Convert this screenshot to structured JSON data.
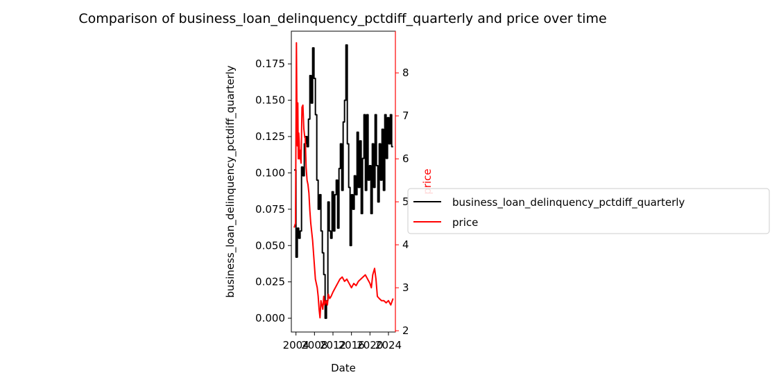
{
  "chart_data": {
    "type": "line",
    "title": "Comparison of business_loan_delinquency_pctdiff_quarterly and price over time",
    "xlabel": "Date",
    "ylabel_left": "business_loan_delinquency_pctdiff_quarterly",
    "ylabel_right": "price",
    "x_ticks": [
      "2004",
      "2008",
      "2012",
      "2016",
      "2020",
      "2024"
    ],
    "y_left_ticks": [
      "0.000",
      "0.025",
      "0.050",
      "0.075",
      "0.100",
      "0.125",
      "0.150",
      "0.175"
    ],
    "y_right_ticks": [
      "2",
      "3",
      "4",
      "5",
      "6",
      "7",
      "8"
    ],
    "xlim": [
      2003.0,
      2025.5
    ],
    "ylim_left": [
      -0.0095,
      0.1975
    ],
    "ylim_right": [
      1.97,
      8.97
    ],
    "grid": false,
    "legend_position": "outside-right",
    "colors": {
      "business_loan_delinquency_pctdiff_quarterly": "#000000",
      "price": "#ff0000"
    },
    "series": [
      {
        "name": "business_loan_delinquency_pctdiff_quarterly",
        "axis": "left",
        "x": [
          2003.6,
          2004.0,
          2004.0,
          2004.3,
          2004.3,
          2004.6,
          2004.6,
          2004.9,
          2004.9,
          2005.2,
          2005.2,
          2005.5,
          2005.5,
          2005.8,
          2005.8,
          2006.1,
          2006.1,
          2006.4,
          2006.4,
          2006.7,
          2006.7,
          2007.0,
          2007.0,
          2007.3,
          2007.3,
          2007.6,
          2007.6,
          2007.9,
          2007.9,
          2008.2,
          2008.2,
          2008.5,
          2008.5,
          2008.8,
          2008.8,
          2009.1,
          2009.1,
          2009.4,
          2009.4,
          2009.7,
          2009.7,
          2010.0,
          2010.0,
          2010.3,
          2010.3,
          2010.6,
          2010.6,
          2010.9,
          2010.9,
          2011.2,
          2011.2,
          2011.5,
          2011.5,
          2011.8,
          2011.8,
          2012.1,
          2012.1,
          2012.4,
          2012.4,
          2012.7,
          2012.7,
          2013.0,
          2013.0,
          2013.3,
          2013.3,
          2013.6,
          2013.6,
          2013.9,
          2013.9,
          2014.2,
          2014.2,
          2014.5,
          2014.5,
          2014.8,
          2014.8,
          2015.1,
          2015.1,
          2015.4,
          2015.4,
          2015.7,
          2015.7,
          2016.0,
          2016.0,
          2016.3,
          2016.3,
          2016.6,
          2016.6,
          2016.9,
          2016.9,
          2017.2,
          2017.2,
          2017.5,
          2017.5,
          2017.8,
          2017.8,
          2018.1,
          2018.1,
          2018.4,
          2018.4,
          2018.7,
          2018.7,
          2019.0,
          2019.0,
          2019.3,
          2019.3,
          2019.6,
          2019.6,
          2019.9,
          2019.9,
          2020.2,
          2020.2,
          2020.5,
          2020.5,
          2020.8,
          2020.8,
          2021.1,
          2021.1,
          2021.4,
          2021.4,
          2021.7,
          2021.7,
          2022.0,
          2022.0,
          2022.3,
          2022.3,
          2022.6,
          2022.6,
          2022.9,
          2022.9,
          2023.2,
          2023.2,
          2023.5,
          2023.5,
          2023.8,
          2023.8,
          2024.1,
          2024.1,
          2024.4,
          2024.4,
          2024.7,
          2024.7,
          2025.0
        ],
        "values": [
          0.102,
          0.102,
          0.042,
          0.042,
          0.062,
          0.062,
          0.055,
          0.055,
          0.06,
          0.06,
          0.104,
          0.104,
          0.098,
          0.098,
          0.12,
          0.12,
          0.125,
          0.125,
          0.118,
          0.118,
          0.137,
          0.137,
          0.167,
          0.167,
          0.148,
          0.148,
          0.186,
          0.186,
          0.165,
          0.165,
          0.14,
          0.14,
          0.095,
          0.095,
          0.075,
          0.075,
          0.085,
          0.085,
          0.06,
          0.06,
          0.045,
          0.045,
          0.03,
          0.03,
          0.0,
          0.0,
          0.012,
          0.012,
          0.08,
          0.08,
          0.06,
          0.06,
          0.055,
          0.055,
          0.087,
          0.087,
          0.06,
          0.06,
          0.085,
          0.085,
          0.095,
          0.095,
          0.062,
          0.062,
          0.103,
          0.103,
          0.12,
          0.12,
          0.088,
          0.088,
          0.135,
          0.135,
          0.15,
          0.15,
          0.188,
          0.188,
          0.12,
          0.12,
          0.09,
          0.09,
          0.05,
          0.05,
          0.085,
          0.085,
          0.075,
          0.075,
          0.098,
          0.098,
          0.085,
          0.085,
          0.128,
          0.128,
          0.09,
          0.09,
          0.122,
          0.122,
          0.072,
          0.072,
          0.11,
          0.11,
          0.14,
          0.14,
          0.088,
          0.088,
          0.14,
          0.14,
          0.095,
          0.095,
          0.105,
          0.105,
          0.072,
          0.072,
          0.12,
          0.12,
          0.09,
          0.09,
          0.14,
          0.14,
          0.105,
          0.105,
          0.08,
          0.08,
          0.12,
          0.12,
          0.095,
          0.095,
          0.13,
          0.13,
          0.088,
          0.088,
          0.14,
          0.14,
          0.11,
          0.11,
          0.138,
          0.138,
          0.12,
          0.12,
          0.14,
          0.14,
          0.118,
          0.118
        ]
      },
      {
        "name": "price",
        "axis": "right",
        "x": [
          2003.6,
          2003.9,
          2004.1,
          2004.2,
          2004.3,
          2004.4,
          2004.5,
          2004.6,
          2004.7,
          2004.8,
          2004.9,
          2005.0,
          2005.1,
          2005.3,
          2005.5,
          2005.7,
          2005.9,
          2006.0,
          2006.2,
          2006.4,
          2006.6,
          2006.8,
          2007.0,
          2007.2,
          2007.4,
          2007.6,
          2007.8,
          2008.0,
          2008.2,
          2008.4,
          2008.6,
          2008.8,
          2009.0,
          2009.2,
          2009.4,
          2009.6,
          2009.8,
          2010.0,
          2010.2,
          2010.5,
          2010.8,
          2011.0,
          2011.3,
          2011.6,
          2012.0,
          2012.5,
          2013.0,
          2013.5,
          2014.0,
          2014.5,
          2015.0,
          2015.5,
          2016.0,
          2016.5,
          2017.0,
          2017.5,
          2018.0,
          2018.5,
          2019.0,
          2019.5,
          2020.0,
          2020.3,
          2020.6,
          2021.0,
          2021.3,
          2021.6,
          2022.0,
          2022.5,
          2023.0,
          2023.5,
          2024.0,
          2024.5,
          2025.0
        ],
        "values": [
          4.4,
          4.5,
          8.7,
          7.2,
          6.3,
          7.3,
          6.0,
          6.6,
          6.4,
          6.0,
          6.2,
          6.0,
          5.9,
          7.2,
          7.25,
          6.7,
          6.5,
          6.5,
          5.8,
          5.5,
          5.4,
          5.2,
          4.8,
          4.5,
          4.3,
          4.1,
          3.8,
          3.5,
          3.2,
          3.1,
          3.0,
          2.8,
          2.5,
          2.3,
          2.7,
          2.6,
          2.5,
          2.8,
          2.6,
          2.7,
          2.6,
          2.85,
          2.75,
          2.8,
          2.9,
          3.0,
          3.1,
          3.2,
          3.25,
          3.15,
          3.2,
          3.1,
          3.0,
          3.1,
          3.05,
          3.15,
          3.2,
          3.25,
          3.3,
          3.2,
          3.1,
          3.0,
          3.3,
          3.45,
          3.2,
          2.8,
          2.75,
          2.7,
          2.7,
          2.65,
          2.7,
          2.6,
          2.75
        ]
      }
    ]
  }
}
